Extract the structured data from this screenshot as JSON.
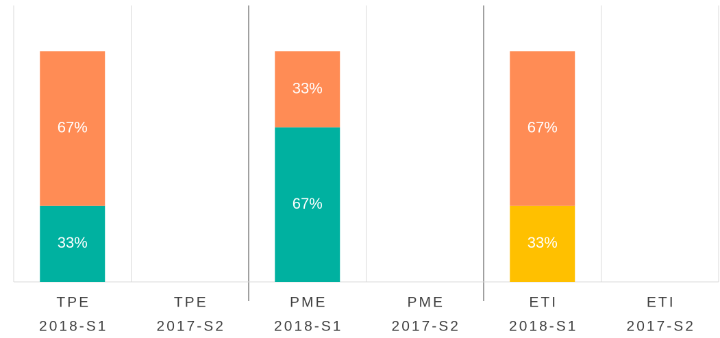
{
  "chart_data": {
    "type": "stacked_bar",
    "categories": [
      [
        "TPE",
        "2018-S1"
      ],
      [
        "TPE",
        "2017-S2"
      ],
      [
        "PME",
        "2018-S1"
      ],
      [
        "PME",
        "2017-S2"
      ],
      [
        "ETI",
        "2018-S1"
      ],
      [
        "ETI",
        "2017-S2"
      ]
    ],
    "ylim": [
      0,
      100
    ],
    "series": [
      {
        "color": "#00b1a0",
        "values": [
          33,
          null,
          67,
          null,
          null,
          null
        ],
        "value_labels": [
          "33%",
          null,
          "67%",
          null,
          null,
          null
        ]
      },
      {
        "color": "#ffc000",
        "values": [
          null,
          null,
          null,
          null,
          33,
          null
        ],
        "value_labels": [
          null,
          null,
          null,
          null,
          "33%",
          null
        ]
      },
      {
        "color": "#ff8c55",
        "values": [
          67,
          null,
          33,
          null,
          67,
          null
        ],
        "value_labels": [
          "67%",
          null,
          "33%",
          null,
          "67%",
          null
        ]
      }
    ]
  }
}
